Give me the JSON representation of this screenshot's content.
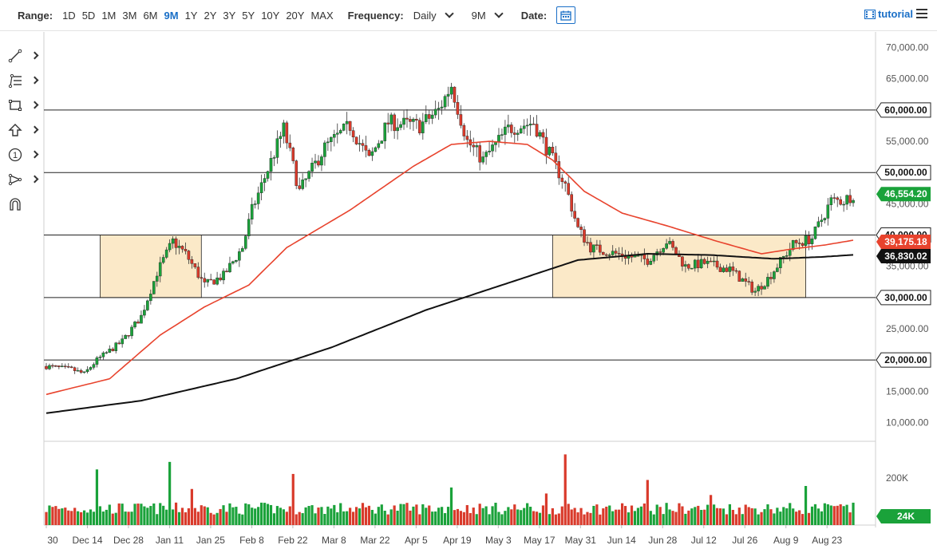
{
  "toolbar": {
    "range_label": "Range:",
    "ranges": [
      "1D",
      "5D",
      "1M",
      "3M",
      "6M",
      "9M",
      "1Y",
      "2Y",
      "3Y",
      "5Y",
      "10Y",
      "20Y",
      "MAX"
    ],
    "active_range": "9M",
    "frequency_label": "Frequency:",
    "frequency_value": "Daily",
    "period_value": "9M",
    "date_label": "Date:",
    "tutorial_label": "tutorial"
  },
  "drawing_tools": [
    "trend-line-icon",
    "fib-tool-icon",
    "rectangle-icon",
    "arrow-up-icon",
    "number-marker-icon",
    "pattern-tool-icon",
    "magnet-icon"
  ],
  "colors": {
    "up": "#1aa23a",
    "down": "#d93a2b",
    "ma_short": "#e8432d",
    "ma_long": "#111111",
    "zone": "#fbe9c8",
    "accent": "#1a6fc7"
  },
  "chart_data": {
    "type": "candlestick",
    "y_ticks": [
      "70,000.00",
      "65,000.00",
      "60,000.00",
      "55,000.00",
      "50,000.00",
      "45,000.00",
      "40,000.00",
      "35,000.00",
      "30,000.00",
      "25,000.00",
      "20,000.00",
      "15,000.00",
      "10,000.00"
    ],
    "ylim": [
      7000,
      72500
    ],
    "x_ticks": [
      "30",
      "Dec 14",
      "Dec 28",
      "Jan 11",
      "Jan 25",
      "Feb 8",
      "Feb 22",
      "Mar 8",
      "Mar 22",
      "Apr 5",
      "Apr 19",
      "May 3",
      "May 17",
      "May 31",
      "Jun 14",
      "Jun 28",
      "Jul 12",
      "Jul 26",
      "Aug 9",
      "Aug 23"
    ],
    "horizontal_levels": [
      {
        "label": "60,000.00",
        "value": 60000
      },
      {
        "label": "50,000.00",
        "value": 50000
      },
      {
        "label": "40,000.00",
        "value": 40000
      },
      {
        "label": "30,000.00",
        "value": 30000
      },
      {
        "label": "20,000.00",
        "value": 20000
      }
    ],
    "value_badges": [
      {
        "label": "46,554.20",
        "value": 46554.2,
        "color": "#1aa23a"
      },
      {
        "label": "39,175.18",
        "value": 39175.18,
        "color": "#e8432d"
      },
      {
        "label": "36,830.02",
        "value": 36830.02,
        "color": "#111111"
      }
    ],
    "zones": [
      {
        "from_day": 17,
        "to_day": 49,
        "low": 30000,
        "high": 40000
      },
      {
        "from_day": 160,
        "to_day": 240,
        "low": 30000,
        "high": 40000
      }
    ],
    "close_anchors": [
      [
        0,
        19000
      ],
      [
        8,
        18500
      ],
      [
        12,
        17800
      ],
      [
        16,
        20000
      ],
      [
        24,
        23000
      ],
      [
        30,
        27000
      ],
      [
        35,
        34000
      ],
      [
        40,
        39000
      ],
      [
        44,
        37000
      ],
      [
        50,
        32000
      ],
      [
        56,
        33500
      ],
      [
        62,
        38000
      ],
      [
        65,
        44000
      ],
      [
        75,
        57000
      ],
      [
        80,
        47000
      ],
      [
        88,
        54000
      ],
      [
        96,
        57500
      ],
      [
        102,
        52000
      ],
      [
        108,
        58000
      ],
      [
        118,
        57500
      ],
      [
        124,
        60000
      ],
      [
        128,
        64000
      ],
      [
        133,
        55000
      ],
      [
        138,
        52000
      ],
      [
        146,
        57000
      ],
      [
        154,
        58000
      ],
      [
        158,
        54000
      ],
      [
        164,
        48000
      ],
      [
        168,
        41000
      ],
      [
        172,
        38000
      ],
      [
        180,
        37000
      ],
      [
        190,
        36000
      ],
      [
        196,
        39000
      ],
      [
        202,
        35000
      ],
      [
        208,
        35500
      ],
      [
        216,
        34500
      ],
      [
        224,
        31000
      ],
      [
        228,
        33000
      ],
      [
        236,
        38500
      ],
      [
        242,
        39500
      ],
      [
        248,
        45500
      ],
      [
        252,
        45500
      ],
      [
        255,
        46554
      ]
    ],
    "ma_short": {
      "name": "",
      "anchors": [
        [
          0,
          14500
        ],
        [
          20,
          17000
        ],
        [
          36,
          24000
        ],
        [
          50,
          28500
        ],
        [
          64,
          32000
        ],
        [
          76,
          38000
        ],
        [
          96,
          44000
        ],
        [
          116,
          51000
        ],
        [
          128,
          54500
        ],
        [
          140,
          55000
        ],
        [
          152,
          54500
        ],
        [
          160,
          52000
        ],
        [
          170,
          47000
        ],
        [
          182,
          43500
        ],
        [
          196,
          41500
        ],
        [
          212,
          39000
        ],
        [
          226,
          37000
        ],
        [
          236,
          37800
        ],
        [
          246,
          38400
        ],
        [
          255,
          39175
        ]
      ]
    },
    "ma_long": {
      "name": "",
      "anchors": [
        [
          0,
          11500
        ],
        [
          30,
          13500
        ],
        [
          60,
          17000
        ],
        [
          90,
          22000
        ],
        [
          120,
          28000
        ],
        [
          150,
          33000
        ],
        [
          168,
          36000
        ],
        [
          190,
          37000
        ],
        [
          210,
          36800
        ],
        [
          230,
          36200
        ],
        [
          245,
          36500
        ],
        [
          255,
          36830
        ]
      ]
    },
    "volume": {
      "ticks": [
        "200K"
      ],
      "max": 260000,
      "latest_label": "24K",
      "highlights": [
        [
          16,
          185000
        ],
        [
          39,
          210000
        ],
        [
          46,
          120000
        ],
        [
          78,
          170000
        ],
        [
          128,
          125000
        ],
        [
          158,
          105000
        ],
        [
          164,
          235000
        ],
        [
          190,
          150000
        ],
        [
          210,
          100000
        ],
        [
          240,
          130000
        ]
      ]
    }
  }
}
